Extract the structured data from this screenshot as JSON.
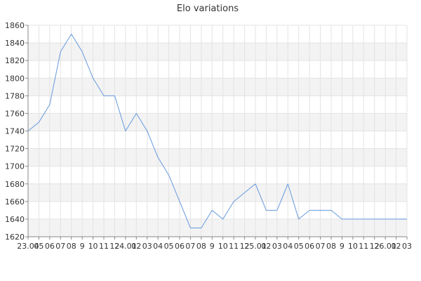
{
  "chart_data": {
    "type": "line",
    "title": "Elo variations",
    "xlabel": "",
    "ylabel": "",
    "x_tick_labels": [
      "23.04",
      "05",
      "06",
      "07",
      "08",
      "9",
      "10",
      "11",
      "12",
      "24.01",
      "02",
      "03",
      "04",
      "05",
      "06",
      "07",
      "08",
      "9",
      "10",
      "11",
      "12",
      "25.01",
      "02",
      "03",
      "04",
      "05",
      "06",
      "07",
      "08",
      "9",
      "10",
      "11",
      "12",
      "26.01",
      "02",
      "03"
    ],
    "y_ticks": [
      1620,
      1640,
      1660,
      1680,
      1700,
      1720,
      1740,
      1760,
      1780,
      1800,
      1820,
      1840,
      1860
    ],
    "ylim": [
      1620,
      1860
    ],
    "grid": true,
    "legend": "none",
    "series": [
      {
        "values": [
          1740,
          1750,
          1770,
          1830,
          1850,
          1830,
          1800,
          1780,
          1780,
          1740,
          1760,
          1740,
          1710,
          1690,
          1660,
          1630,
          1630,
          1650,
          1640,
          1660,
          1670,
          1680,
          1650,
          1650,
          1680,
          1640,
          1650,
          1650,
          1650,
          1640,
          1640,
          1640,
          1640,
          1640,
          1640,
          1640
        ],
        "color": "#6699dd"
      }
    ],
    "colors": {
      "band": "#f3f3f3",
      "grid": "#e3e3e3",
      "axis": "#888888"
    }
  }
}
